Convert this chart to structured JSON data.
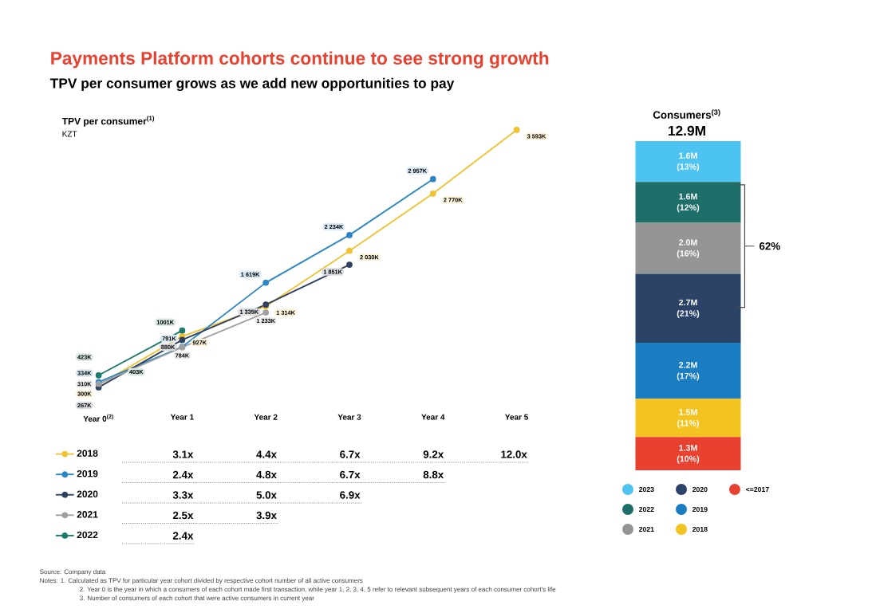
{
  "chart_data": [
    {
      "type": "other",
      "title": "Payments Platform cohorts continue to see strong growth",
      "subtitle": "TPV per consumer grows as we add new opportunities to pay",
      "annotations": [
        "Source: Company data",
        "Notes: 1. Calculated as TPV for particular year cohort divided by respective cohort number of all active consumers",
        "2. Year 0 is the year in which a consumers of each cohort made first transaction, while year 1, 2, 3, 4, 5 refer to relevant subsequent years of each consumer cohort's life",
        "3. Number of consumers of each cohort that were active consumers in current year"
      ]
    },
    {
      "type": "line",
      "title": "TPV per consumer$^{(1)}$",
      "subtitle": "KZT",
      "categories": [
        "Year 0$^{(2)}$",
        "Year 1",
        "Year 2",
        "Year 3",
        "Year 4",
        "Year 5"
      ],
      "series": [
        {
          "name": "2018",
          "color": "#f1c232",
          "values": [
            300,
            927,
            1314,
            2030,
            2770,
            3593
          ],
          "value_labels": [
            "300K",
            "927K",
            "1 314K",
            "2 030K",
            "2 770K",
            "3 593K"
          ]
        },
        {
          "name": "2019",
          "color": "#2a86c6",
          "values": [
            334,
            791,
            1619,
            2234,
            2957,
            null
          ],
          "value_labels": [
            "334K",
            "791K",
            "1 619K",
            "2 234K",
            "2 957K",
            null
          ]
        },
        {
          "name": "2020",
          "color": "#2f4060",
          "values": [
            267,
            880,
            1335,
            1851,
            null,
            null
          ],
          "value_labels": [
            "267K",
            "880K",
            "1 335K",
            "1 851K",
            null,
            null
          ]
        },
        {
          "name": "2021",
          "color": "#a0a0a0",
          "values": [
            310,
            784,
            1233,
            null,
            null,
            null
          ],
          "value_labels": [
            "310K",
            "784K",
            "1 233K",
            null,
            null,
            null
          ]
        },
        {
          "name": "2022",
          "color": "#1a7a6a",
          "values": [
            423,
            1001,
            null,
            null,
            null,
            null
          ],
          "value_labels": [
            "423K",
            "1001K",
            null,
            null,
            null,
            null
          ]
        }
      ],
      "annotations": [
        "403K"
      ],
      "marker": "circle",
      "line_style": "solid",
      "legend": "bottom",
      "tick_labels": "x"
    },
    {
      "type": "other",
      "cell_labels": [
        [
          "3.1x",
          "4.4x",
          "6.7x",
          "9.2x",
          "12.0x"
        ],
        [
          "2.4x",
          "4.8x",
          "6.7x",
          "8.8x",
          null
        ],
        [
          "3.3x",
          "5.0x",
          "6.9x",
          null,
          null
        ],
        [
          "2.5x",
          "3.9x",
          null,
          null,
          null
        ],
        [
          "2.4x",
          null,
          null,
          null,
          null
        ]
      ]
    },
    {
      "type": "bar",
      "title": "Consumers$^{(3)}$",
      "totals": [
        "12.9M"
      ],
      "categories": [
        null
      ],
      "stacked": true,
      "series": [
        {
          "name": "<=2017",
          "color": "#e8412f",
          "values": [
            1.3
          ],
          "value_labels": [
            "1.3M"
          ]
        },
        {
          "name": "2018",
          "color": "#f3c321",
          "values": [
            1.5
          ],
          "value_labels": [
            "1.5M"
          ]
        },
        {
          "name": "2019",
          "color": "#1a7cc1",
          "values": [
            2.2
          ],
          "value_labels": [
            "2.2M"
          ]
        },
        {
          "name": "2020",
          "color": "#2c4368",
          "values": [
            2.7
          ],
          "value_labels": [
            "2.7M"
          ]
        },
        {
          "name": "2021",
          "color": "#959595",
          "values": [
            2.0
          ],
          "value_labels": [
            "2.0M"
          ]
        },
        {
          "name": "2022",
          "color": "#1e6f6a",
          "values": [
            1.6
          ],
          "value_labels": [
            "1.6M"
          ]
        },
        {
          "name": "2023",
          "color": "#4cc3f0",
          "values": [
            1.6
          ],
          "value_labels": [
            "1.6M"
          ]
        }
      ],
      "annotations": [
        "62%",
        "(10%)",
        "(11%)",
        "(17%)",
        "(21%)",
        "(16%)",
        "(12%)",
        "(13%)"
      ],
      "legend": "bottom",
      "tick_labels": false
    }
  ]
}
